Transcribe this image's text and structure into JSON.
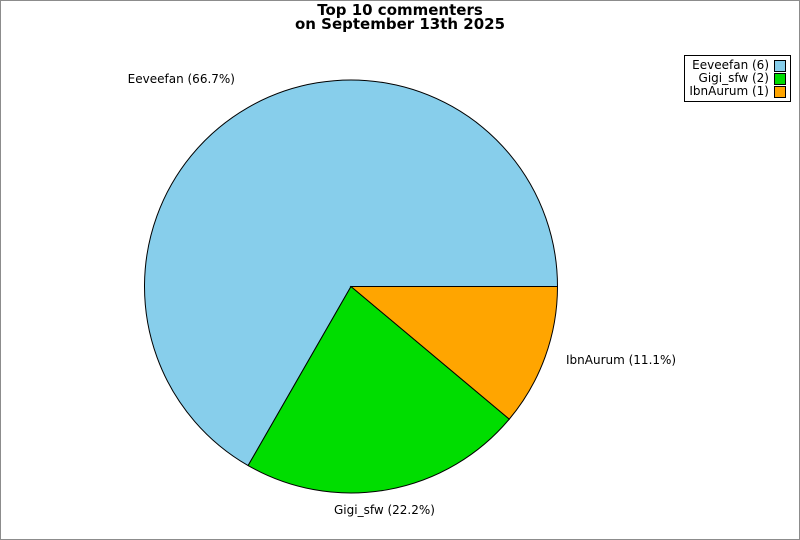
{
  "window": {
    "background_color": "#ffffff",
    "border_color": "#8c8c8c"
  },
  "title": {
    "line1": "Top 10 commenters",
    "line2": "on September 13th 2025"
  },
  "chart_data": {
    "type": "pie",
    "title": "Top 10 commenters on September 13th 2025",
    "start_angle_deg": 0,
    "direction": "counterclockwise",
    "edge_color": "#000000",
    "legend_position": "top-right",
    "slices": [
      {
        "name": "Eeveefan",
        "count": 6,
        "percent": 66.7,
        "color": "#87CEEB",
        "label": "Eeveefan (66.7%)",
        "legend_label": "Eeveefan (6)"
      },
      {
        "name": "Gigi_sfw",
        "count": 2,
        "percent": 22.2,
        "color": "#00DD00",
        "label": "Gigi_sfw (22.2%)",
        "legend_label": "Gigi_sfw (2)"
      },
      {
        "name": "IbnAurum",
        "count": 1,
        "percent": 11.1,
        "color": "#FFA500",
        "label": "IbnAurum (11.1%)",
        "legend_label": "IbnAurum (1)"
      }
    ]
  }
}
